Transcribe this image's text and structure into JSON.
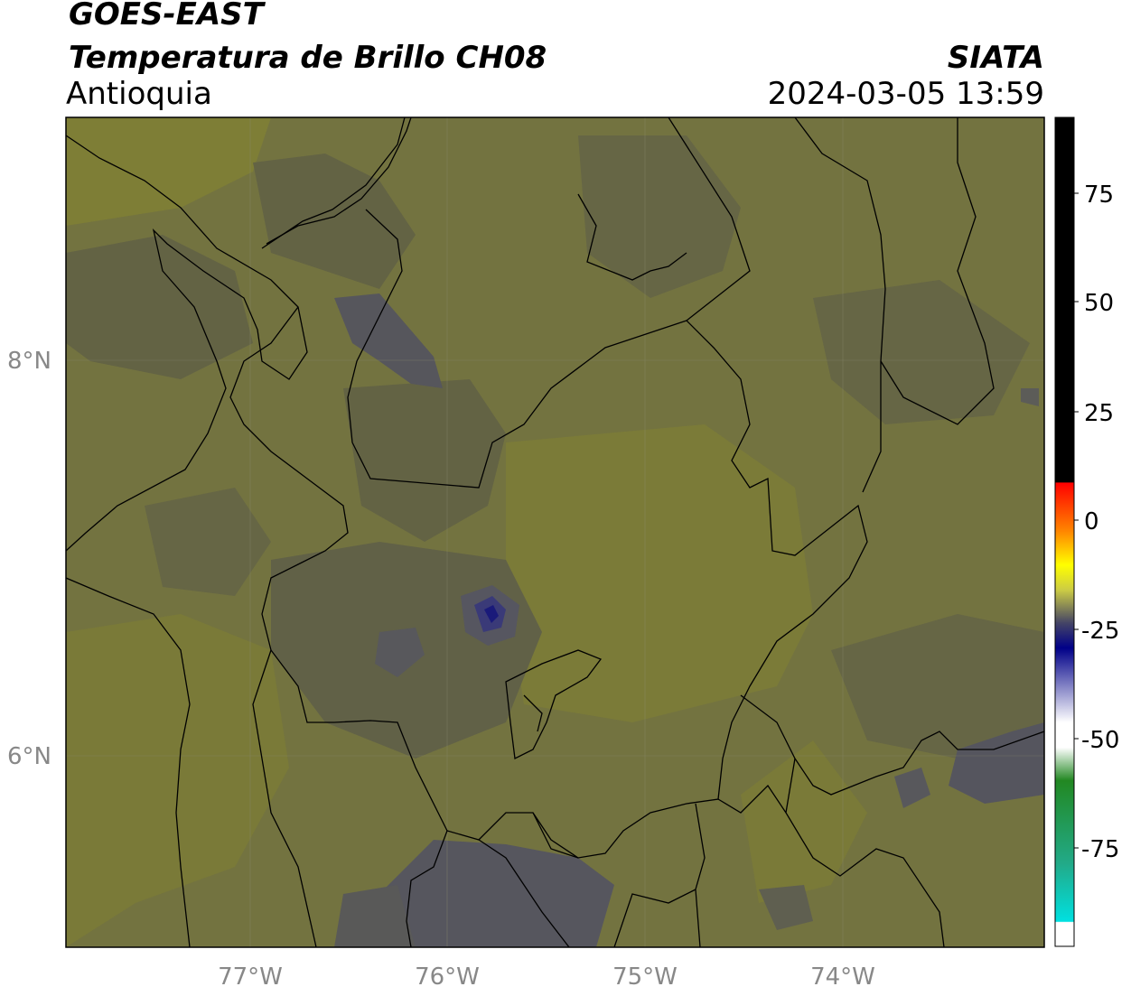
{
  "header": {
    "satellite": "GOES-EAST",
    "product": "Temperatura de Brillo CH08",
    "region": "Antioquia",
    "org": "SIATA",
    "datetime": "2024-03-05 13:59"
  },
  "map": {
    "lat_ticks": [
      "8°N",
      "6°N"
    ],
    "lon_ticks": [
      "77°W",
      "76°W",
      "75°W",
      "74°W"
    ],
    "colors": {
      "olive_light": "#7a7a3a",
      "olive": "#6f6f3e",
      "olive_dark": "#5f5f48",
      "gray_blue": "#54545e",
      "blue": "#1a1a7a"
    }
  },
  "colorbar": {
    "ticks": [
      "75",
      "50",
      "25",
      "0",
      "-25",
      "-50",
      "-75"
    ],
    "colors": [
      "#000000",
      "#ff0000",
      "#ff8800",
      "#ffff00",
      "#444466",
      "#000088",
      "#ffffff",
      "#228822",
      "#00e0e0"
    ]
  }
}
